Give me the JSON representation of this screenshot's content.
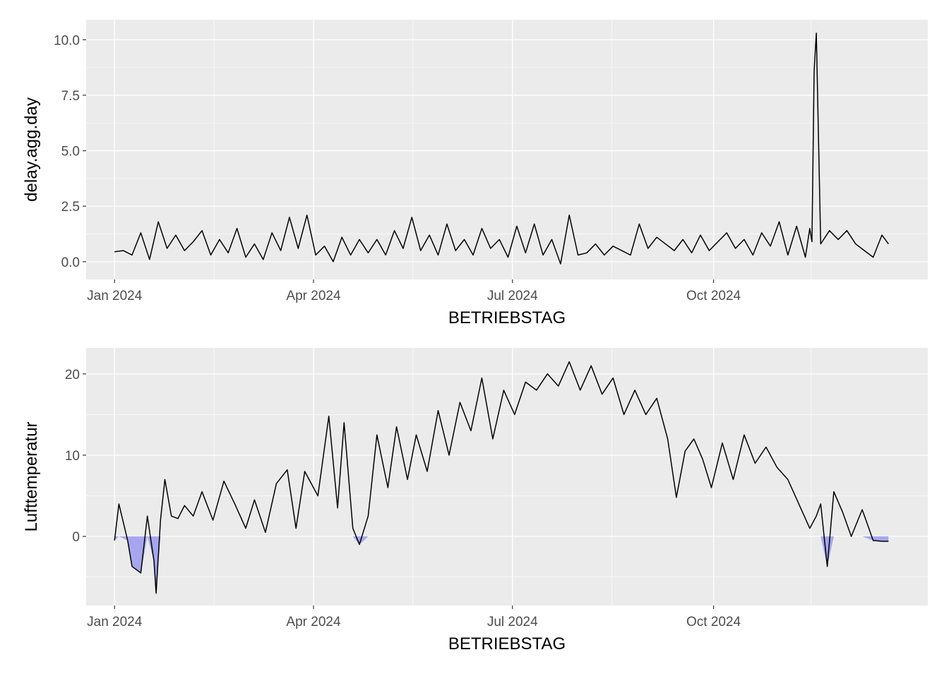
{
  "chart_data": [
    {
      "type": "line",
      "xlabel": "BETRIEBSTAG",
      "ylabel": "delay.agg.day",
      "x_ticks": [
        "Jan 2024",
        "Apr 2024",
        "Jul 2024",
        "Oct 2024"
      ],
      "x_tick_dates": [
        "2024-01-01",
        "2024-04-01",
        "2024-07-01",
        "2024-10-01"
      ],
      "y_ticks": [
        "0.0",
        "2.5",
        "5.0",
        "7.5",
        "10.0"
      ],
      "y_tick_values": [
        0,
        2.5,
        5,
        7.5,
        10
      ],
      "xlim": [
        "2023-12-19",
        "2025-01-07"
      ],
      "ylim": [
        -0.8,
        10.9
      ],
      "grid": true,
      "line_color": "#000000",
      "x": [
        "2024-01-01",
        "2024-01-05",
        "2024-01-09",
        "2024-01-13",
        "2024-01-17",
        "2024-01-21",
        "2024-01-25",
        "2024-01-29",
        "2024-02-02",
        "2024-02-06",
        "2024-02-10",
        "2024-02-14",
        "2024-02-18",
        "2024-02-22",
        "2024-02-26",
        "2024-03-01",
        "2024-03-05",
        "2024-03-09",
        "2024-03-13",
        "2024-03-17",
        "2024-03-21",
        "2024-03-25",
        "2024-03-29",
        "2024-04-02",
        "2024-04-06",
        "2024-04-10",
        "2024-04-14",
        "2024-04-18",
        "2024-04-22",
        "2024-04-26",
        "2024-04-30",
        "2024-05-04",
        "2024-05-08",
        "2024-05-12",
        "2024-05-16",
        "2024-05-20",
        "2024-05-24",
        "2024-05-28",
        "2024-06-01",
        "2024-06-05",
        "2024-06-09",
        "2024-06-13",
        "2024-06-17",
        "2024-06-21",
        "2024-06-25",
        "2024-06-29",
        "2024-07-03",
        "2024-07-07",
        "2024-07-11",
        "2024-07-15",
        "2024-07-19",
        "2024-07-23",
        "2024-07-27",
        "2024-07-31",
        "2024-08-04",
        "2024-08-08",
        "2024-08-12",
        "2024-08-16",
        "2024-08-20",
        "2024-08-24",
        "2024-08-28",
        "2024-09-01",
        "2024-09-05",
        "2024-09-09",
        "2024-09-13",
        "2024-09-17",
        "2024-09-21",
        "2024-09-25",
        "2024-09-29",
        "2024-10-03",
        "2024-10-07",
        "2024-10-11",
        "2024-10-15",
        "2024-10-19",
        "2024-10-23",
        "2024-10-27",
        "2024-10-31",
        "2024-11-04",
        "2024-11-08",
        "2024-11-12",
        "2024-11-14",
        "2024-11-15",
        "2024-11-16",
        "2024-11-17",
        "2024-11-19",
        "2024-11-23",
        "2024-11-27",
        "2024-12-01",
        "2024-12-05",
        "2024-12-09",
        "2024-12-13",
        "2024-12-17",
        "2024-12-20"
      ],
      "y": [
        0.45,
        0.5,
        0.3,
        1.3,
        0.1,
        1.8,
        0.6,
        1.2,
        0.5,
        0.9,
        1.4,
        0.3,
        1.0,
        0.4,
        1.5,
        0.2,
        0.8,
        0.1,
        1.3,
        0.5,
        2.0,
        0.6,
        2.1,
        0.3,
        0.7,
        0.0,
        1.1,
        0.3,
        1.0,
        0.4,
        1.0,
        0.3,
        1.4,
        0.6,
        2.0,
        0.5,
        1.2,
        0.3,
        1.7,
        0.5,
        1.0,
        0.3,
        1.5,
        0.6,
        1.0,
        0.2,
        1.6,
        0.4,
        1.7,
        0.3,
        1.0,
        -0.1,
        2.1,
        0.3,
        0.4,
        0.8,
        0.3,
        0.7,
        0.5,
        0.3,
        1.7,
        0.6,
        1.1,
        0.8,
        0.5,
        1.0,
        0.4,
        1.2,
        0.5,
        0.9,
        1.3,
        0.6,
        1.0,
        0.3,
        1.3,
        0.7,
        1.8,
        0.3,
        1.6,
        0.2,
        1.5,
        0.9,
        8.6,
        10.3,
        0.8,
        1.4,
        1.0,
        1.4,
        0.8,
        0.5,
        0.2,
        1.2,
        0.8
      ]
    },
    {
      "type": "area",
      "xlabel": "BETRIEBSTAG",
      "ylabel": "Lufttemperatur",
      "x_ticks": [
        "Jan 2024",
        "Apr 2024",
        "Jul 2024",
        "Oct 2024"
      ],
      "x_tick_dates": [
        "2024-01-01",
        "2024-04-01",
        "2024-07-01",
        "2024-10-01"
      ],
      "y_ticks": [
        "0",
        "10",
        "20"
      ],
      "y_tick_values": [
        0,
        10,
        20
      ],
      "xlim": [
        "2023-12-19",
        "2025-01-07"
      ],
      "ylim": [
        -8.5,
        23.2
      ],
      "grid": true,
      "line_color": "#000000",
      "fill_below_zero_color": "#a6a6ee",
      "x": [
        "2024-01-01",
        "2024-01-03",
        "2024-01-07",
        "2024-01-09",
        "2024-01-13",
        "2024-01-16",
        "2024-01-19",
        "2024-01-20",
        "2024-01-22",
        "2024-01-24",
        "2024-01-27",
        "2024-01-30",
        "2024-02-02",
        "2024-02-06",
        "2024-02-10",
        "2024-02-15",
        "2024-02-20",
        "2024-02-25",
        "2024-03-01",
        "2024-03-05",
        "2024-03-10",
        "2024-03-15",
        "2024-03-20",
        "2024-03-24",
        "2024-03-28",
        "2024-04-03",
        "2024-04-08",
        "2024-04-12",
        "2024-04-15",
        "2024-04-19",
        "2024-04-22",
        "2024-04-26",
        "2024-04-30",
        "2024-05-05",
        "2024-05-09",
        "2024-05-14",
        "2024-05-18",
        "2024-05-23",
        "2024-05-28",
        "2024-06-02",
        "2024-06-07",
        "2024-06-12",
        "2024-06-17",
        "2024-06-22",
        "2024-06-27",
        "2024-07-02",
        "2024-07-07",
        "2024-07-12",
        "2024-07-17",
        "2024-07-22",
        "2024-07-27",
        "2024-08-01",
        "2024-08-06",
        "2024-08-11",
        "2024-08-16",
        "2024-08-21",
        "2024-08-26",
        "2024-08-31",
        "2024-09-05",
        "2024-09-10",
        "2024-09-14",
        "2024-09-18",
        "2024-09-22",
        "2024-09-26",
        "2024-09-30",
        "2024-10-05",
        "2024-10-10",
        "2024-10-15",
        "2024-10-20",
        "2024-10-25",
        "2024-10-30",
        "2024-11-04",
        "2024-11-09",
        "2024-11-14",
        "2024-11-17",
        "2024-11-19",
        "2024-11-22",
        "2024-11-25",
        "2024-11-29",
        "2024-12-03",
        "2024-12-08",
        "2024-12-13",
        "2024-12-17",
        "2024-12-20"
      ],
      "y": [
        -0.5,
        4.0,
        -0.5,
        -3.7,
        -4.5,
        2.5,
        -3.0,
        -7.0,
        2.0,
        7.0,
        2.5,
        2.2,
        3.8,
        2.5,
        5.5,
        2.0,
        6.8,
        4.0,
        1.0,
        4.5,
        0.5,
        6.5,
        8.2,
        1.0,
        8.0,
        5.0,
        14.8,
        3.5,
        14.0,
        1.0,
        -1.0,
        2.5,
        12.5,
        6.0,
        13.5,
        7.0,
        12.5,
        8.0,
        15.5,
        10.0,
        16.5,
        13.0,
        19.5,
        12.0,
        18.0,
        15.0,
        19.0,
        18.0,
        20.0,
        18.5,
        21.5,
        18.0,
        21.0,
        17.5,
        19.5,
        15.0,
        18.0,
        15.0,
        17.0,
        12.0,
        4.8,
        10.5,
        12.0,
        9.5,
        6.0,
        11.5,
        7.0,
        12.5,
        9.0,
        11.0,
        8.5,
        7.0,
        4.0,
        1.0,
        2.5,
        4.0,
        -3.7,
        5.5,
        3.0,
        0.0,
        3.3,
        -0.5,
        -0.6,
        -0.6
      ]
    }
  ]
}
